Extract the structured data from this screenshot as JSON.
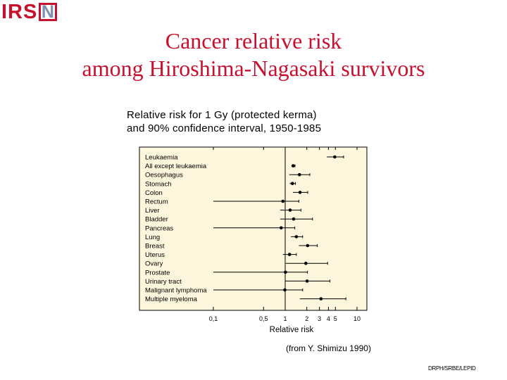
{
  "logo": {
    "main": "IRS",
    "boxed": "N"
  },
  "header": {
    "title_line1": "Cancer relative risk",
    "title_line2": "among Hiroshima-Nagasaki survivors"
  },
  "chart_data": {
    "type": "scatter",
    "title_line1": "Relative risk for 1 Gy (protected kerma)",
    "title_line2": "and 90% confidence interval, 1950-1985",
    "xlabel": "Relative risk",
    "x_scale": "log",
    "xlim": [
      0.1,
      15
    ],
    "xticks": [
      {
        "value": 0.1,
        "label": "0,1"
      },
      {
        "value": 0.5,
        "label": "0,5"
      },
      {
        "value": 1,
        "label": "1"
      },
      {
        "value": 2,
        "label": "2"
      },
      {
        "value": 3,
        "label": "3"
      },
      {
        "value": 4,
        "label": "4"
      },
      {
        "value": 5,
        "label": "5"
      },
      {
        "value": 10,
        "label": "10"
      }
    ],
    "reference_line": 1,
    "series": [
      {
        "category": "Leukaemia",
        "rr": 4.9,
        "ci": [
          3.8,
          6.5
        ]
      },
      {
        "category": "All except leukaemia",
        "rr": 1.29,
        "ci": [
          1.22,
          1.37
        ]
      },
      {
        "category": "Oesophagus",
        "rr": 1.58,
        "ci": [
          1.14,
          2.2
        ]
      },
      {
        "category": "Stomach",
        "rr": 1.26,
        "ci": [
          1.15,
          1.39
        ]
      },
      {
        "category": "Colon",
        "rr": 1.61,
        "ci": [
          1.28,
          2.06
        ]
      },
      {
        "category": "Rectum",
        "rr": 0.93,
        "ci": [
          0.1,
          1.55
        ]
      },
      {
        "category": "Liver",
        "rr": 1.17,
        "ci": [
          0.85,
          1.66
        ]
      },
      {
        "category": "Bladder",
        "rr": 1.31,
        "ci": [
          0.85,
          2.4
        ]
      },
      {
        "category": "Pancreas",
        "rr": 0.88,
        "ci": [
          0.1,
          1.36
        ]
      },
      {
        "category": "Lung",
        "rr": 1.43,
        "ci": [
          1.2,
          1.75
        ]
      },
      {
        "category": "Breast",
        "rr": 2.05,
        "ci": [
          1.55,
          2.8
        ]
      },
      {
        "category": "Uterus",
        "rr": 1.15,
        "ci": [
          0.93,
          1.43
        ]
      },
      {
        "category": "Ovary",
        "rr": 1.94,
        "ci": [
          1.02,
          3.9
        ]
      },
      {
        "category": "Prostate",
        "rr": 1.01,
        "ci": [
          0.1,
          2.04
        ]
      },
      {
        "category": "Urinary tract",
        "rr": 2.02,
        "ci": [
          1.0,
          4.2
        ]
      },
      {
        "category": "Malignant lymphoma",
        "rr": 0.99,
        "ci": [
          0.1,
          1.75
        ]
      },
      {
        "category": "Multiple myeloma",
        "rr": 3.15,
        "ci": [
          1.6,
          7.0
        ]
      }
    ]
  },
  "source": "(from Y. Shimizu 1990)",
  "footer": "DRPH/SRBE/LEPID"
}
